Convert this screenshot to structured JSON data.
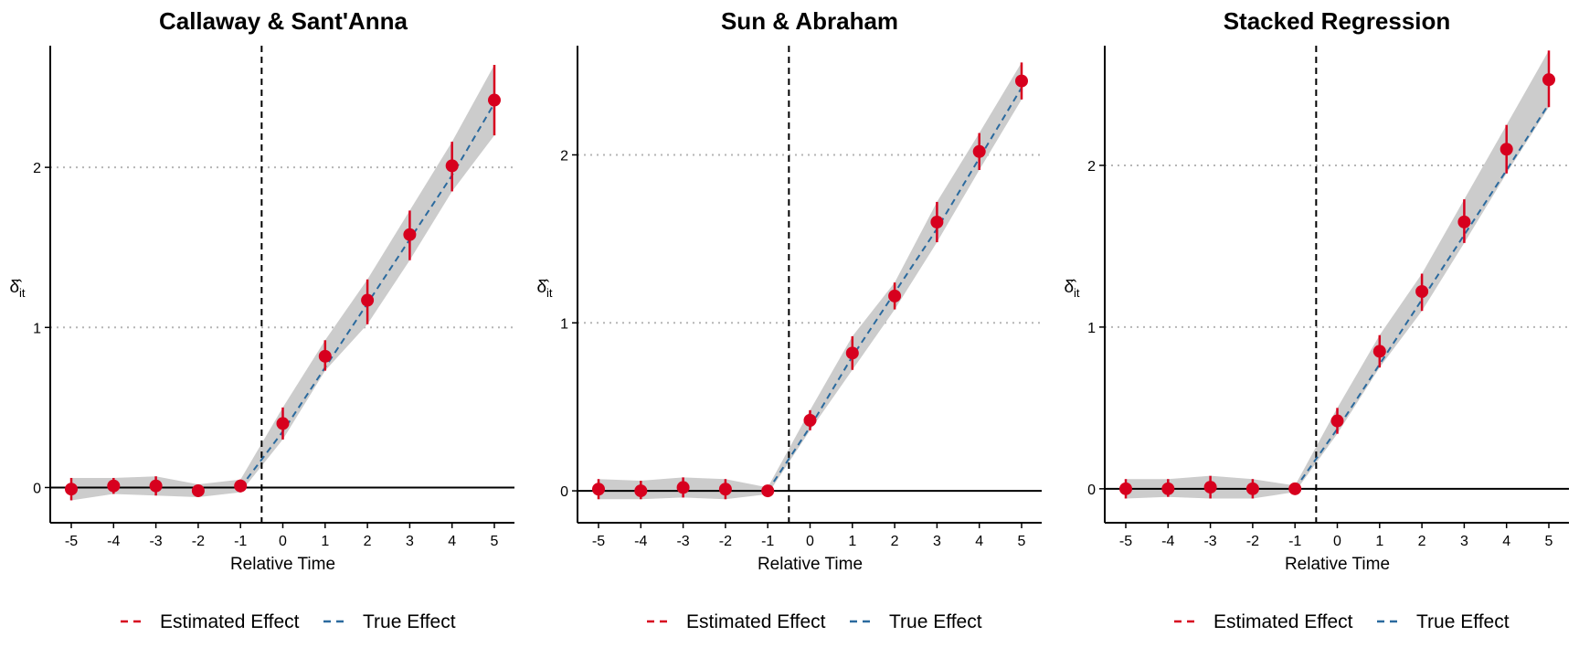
{
  "colors": {
    "estimated": "#d7001e",
    "true": "#2b6a9e",
    "band": "#cccccc",
    "grid": "#b5b5b5"
  },
  "ylabel_html": "δ̂",
  "chart_data": [
    {
      "type": "line",
      "title": "Callaway & Sant'Anna",
      "xlabel": "Relative Time",
      "ylabel": "δ̂it",
      "xlim": [
        -5,
        5
      ],
      "ylim": [
        -0.22,
        2.76
      ],
      "x": [
        -5,
        -4,
        -3,
        -2,
        -1,
        0,
        1,
        2,
        3,
        4,
        5
      ],
      "yticks": [
        0,
        1,
        2
      ],
      "grid": "horizontal-dotted",
      "event_line_x": -0.5,
      "series": [
        {
          "name": "Estimated Effect",
          "values": [
            -0.01,
            0.01,
            0.01,
            -0.02,
            0.01,
            0.4,
            0.82,
            1.17,
            1.58,
            2.01,
            2.42
          ],
          "ci_low": [
            -0.08,
            -0.04,
            -0.05,
            -0.06,
            -0.03,
            0.3,
            0.73,
            1.02,
            1.42,
            1.85,
            2.2
          ],
          "ci_high": [
            0.06,
            0.06,
            0.07,
            0.02,
            0.05,
            0.5,
            0.92,
            1.3,
            1.73,
            2.16,
            2.64
          ]
        },
        {
          "name": "True Effect",
          "x": [
            -1,
            0,
            1,
            2,
            3,
            4,
            5
          ],
          "values": [
            0,
            0.35,
            0.75,
            1.15,
            1.55,
            1.95,
            2.4
          ]
        }
      ],
      "legend": "bottom"
    },
    {
      "type": "line",
      "title": "Sun & Abraham",
      "xlabel": "Relative Time",
      "ylabel": "δ̂it",
      "xlim": [
        -5,
        5
      ],
      "ylim": [
        -0.19,
        2.65
      ],
      "x": [
        -5,
        -4,
        -3,
        -2,
        -1,
        0,
        1,
        2,
        3,
        4,
        5
      ],
      "yticks": [
        0,
        1,
        2
      ],
      "grid": "horizontal-dotted",
      "event_line_x": -0.5,
      "series": [
        {
          "name": "Estimated Effect",
          "values": [
            0.01,
            0.0,
            0.02,
            0.01,
            0.0,
            0.42,
            0.82,
            1.16,
            1.6,
            2.02,
            2.44
          ],
          "ci_low": [
            -0.05,
            -0.05,
            -0.04,
            -0.05,
            -0.02,
            0.36,
            0.72,
            1.08,
            1.48,
            1.91,
            2.33
          ],
          "ci_high": [
            0.07,
            0.06,
            0.08,
            0.07,
            0.02,
            0.48,
            0.92,
            1.24,
            1.72,
            2.13,
            2.55
          ]
        },
        {
          "name": "True Effect",
          "x": [
            -1,
            0,
            1,
            2,
            3,
            4,
            5
          ],
          "values": [
            0,
            0.38,
            0.8,
            1.18,
            1.56,
            1.98,
            2.4
          ]
        }
      ],
      "legend": "bottom"
    },
    {
      "type": "line",
      "title": "Stacked Regression",
      "xlabel": "Relative Time",
      "ylabel": "δ̂it",
      "xlim": [
        -5,
        5
      ],
      "ylim": [
        -0.21,
        2.74
      ],
      "x": [
        -5,
        -4,
        -3,
        -2,
        -1,
        0,
        1,
        2,
        3,
        4,
        5
      ],
      "yticks": [
        0,
        1,
        2
      ],
      "grid": "horizontal-dotted",
      "event_line_x": -0.5,
      "series": [
        {
          "name": "Estimated Effect",
          "values": [
            0.0,
            0.0,
            0.01,
            0.0,
            0.0,
            0.42,
            0.85,
            1.22,
            1.65,
            2.1,
            2.53
          ],
          "ci_low": [
            -0.06,
            -0.05,
            -0.06,
            -0.06,
            -0.02,
            0.34,
            0.75,
            1.1,
            1.52,
            1.95,
            2.36
          ],
          "ci_high": [
            0.06,
            0.06,
            0.08,
            0.06,
            0.02,
            0.5,
            0.95,
            1.33,
            1.79,
            2.25,
            2.71
          ]
        },
        {
          "name": "True Effect",
          "x": [
            -1,
            0,
            1,
            2,
            3,
            4,
            5
          ],
          "values": [
            0,
            0.37,
            0.77,
            1.17,
            1.57,
            1.97,
            2.38
          ]
        }
      ],
      "legend": "bottom"
    }
  ]
}
